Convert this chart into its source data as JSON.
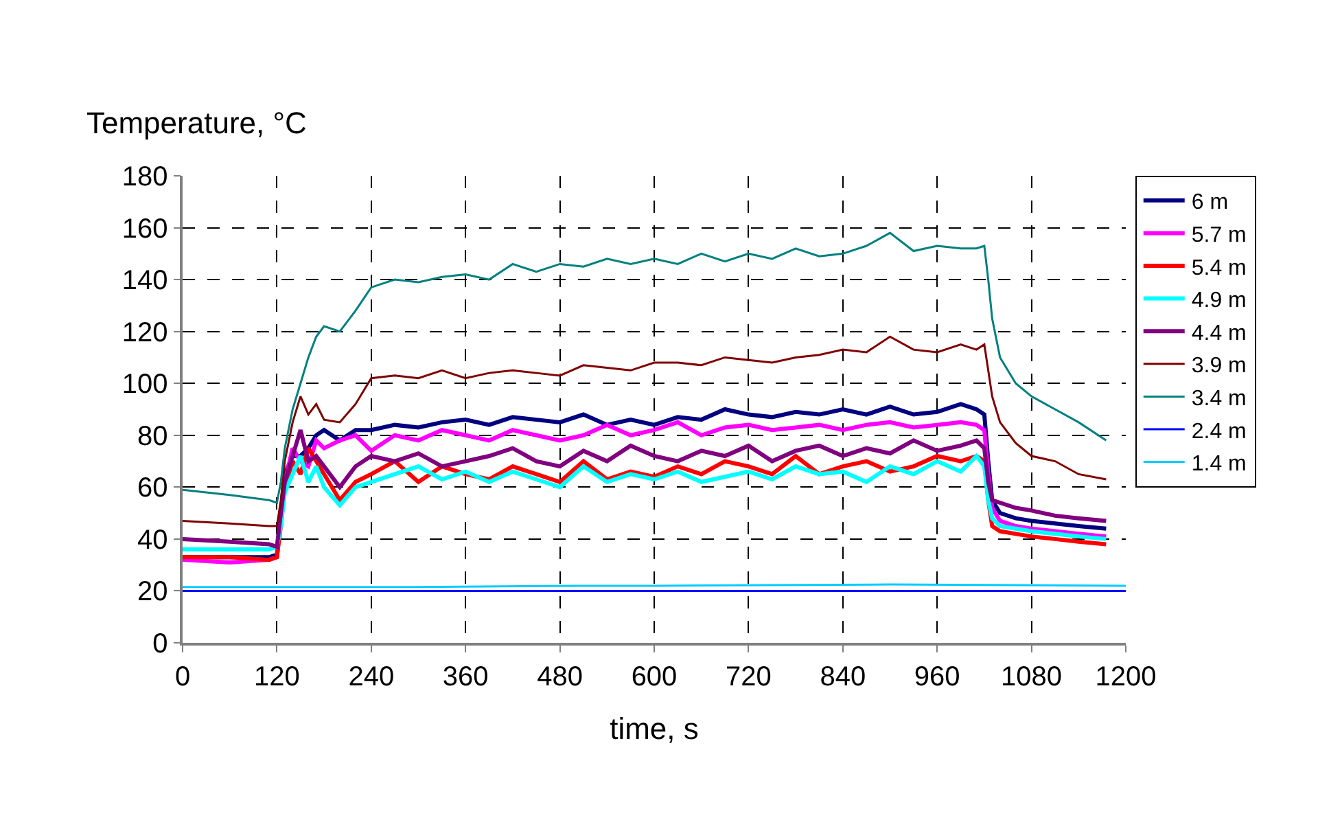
{
  "chart_data": {
    "type": "line",
    "ylabel": "Temperature, °C",
    "xlabel": "time, s",
    "x": [
      0,
      60,
      110,
      120,
      125,
      130,
      140,
      150,
      160,
      170,
      180,
      200,
      220,
      240,
      270,
      300,
      330,
      360,
      390,
      420,
      450,
      480,
      510,
      540,
      570,
      600,
      630,
      660,
      690,
      720,
      750,
      780,
      810,
      840,
      870,
      900,
      930,
      960,
      990,
      1010,
      1020,
      1025,
      1030,
      1040,
      1060,
      1080,
      1110,
      1140,
      1175
    ],
    "xlim": [
      0,
      1200
    ],
    "xticks": [
      0,
      120,
      240,
      360,
      480,
      600,
      720,
      840,
      960,
      1080,
      1200
    ],
    "ylim": [
      0,
      180
    ],
    "yticks": [
      0,
      20,
      40,
      60,
      80,
      100,
      120,
      140,
      160,
      180
    ],
    "grid": true,
    "legend": "right",
    "marker": "none",
    "line_style": "solid",
    "series": [
      {
        "name": "6 m",
        "color": "#000080",
        "values": [
          33,
          33,
          33,
          34,
          50,
          65,
          72,
          72,
          75,
          80,
          82,
          78,
          82,
          82,
          84,
          83,
          85,
          86,
          84,
          87,
          86,
          85,
          88,
          84,
          86,
          84,
          87,
          86,
          90,
          88,
          87,
          89,
          88,
          90,
          88,
          91,
          88,
          89,
          92,
          90,
          88,
          70,
          55,
          50,
          48,
          47,
          46,
          45,
          44
        ]
      },
      {
        "name": "5.7 m",
        "color": "#ff00ff",
        "values": [
          32,
          31,
          32,
          33,
          48,
          62,
          75,
          70,
          68,
          78,
          75,
          78,
          80,
          74,
          80,
          78,
          82,
          80,
          78,
          82,
          80,
          78,
          80,
          84,
          80,
          82,
          85,
          80,
          83,
          84,
          82,
          83,
          84,
          82,
          84,
          85,
          83,
          84,
          85,
          84,
          82,
          65,
          52,
          47,
          45,
          44,
          43,
          42,
          41
        ]
      },
      {
        "name": "5.4 m",
        "color": "#ff0000",
        "values": [
          33,
          33,
          32,
          33,
          45,
          60,
          70,
          65,
          75,
          70,
          65,
          55,
          62,
          65,
          70,
          62,
          68,
          65,
          63,
          68,
          65,
          62,
          70,
          63,
          66,
          64,
          68,
          65,
          70,
          68,
          65,
          72,
          65,
          68,
          70,
          66,
          68,
          72,
          70,
          72,
          70,
          55,
          45,
          43,
          42,
          41,
          40,
          39,
          38
        ]
      },
      {
        "name": "4.9 m",
        "color": "#00ffff",
        "values": [
          36,
          36,
          36,
          37,
          45,
          58,
          65,
          72,
          62,
          68,
          60,
          53,
          60,
          62,
          65,
          68,
          63,
          66,
          62,
          66,
          63,
          60,
          68,
          62,
          65,
          63,
          66,
          62,
          64,
          66,
          63,
          68,
          65,
          66,
          62,
          68,
          65,
          70,
          66,
          72,
          68,
          55,
          48,
          45,
          44,
          43,
          42,
          41,
          40
        ]
      },
      {
        "name": "4.4 m",
        "color": "#800080",
        "values": [
          40,
          39,
          38,
          37,
          50,
          62,
          72,
          82,
          70,
          72,
          68,
          60,
          68,
          72,
          70,
          73,
          68,
          70,
          72,
          75,
          70,
          68,
          74,
          70,
          76,
          72,
          70,
          74,
          72,
          76,
          70,
          74,
          76,
          72,
          75,
          73,
          78,
          74,
          76,
          78,
          75,
          62,
          55,
          54,
          52,
          51,
          49,
          48,
          47
        ]
      },
      {
        "name": "3.9 m",
        "color": "#800000",
        "values": [
          47,
          46,
          45,
          45,
          55,
          70,
          85,
          95,
          88,
          92,
          86,
          85,
          92,
          102,
          103,
          102,
          105,
          102,
          104,
          105,
          104,
          103,
          107,
          106,
          105,
          108,
          108,
          107,
          110,
          109,
          108,
          110,
          111,
          113,
          112,
          118,
          113,
          112,
          115,
          113,
          115,
          105,
          95,
          85,
          77,
          72,
          70,
          65,
          63
        ]
      },
      {
        "name": "3.4 m",
        "color": "#008080",
        "values": [
          59,
          57,
          55,
          54,
          62,
          75,
          90,
          100,
          110,
          118,
          122,
          120,
          128,
          137,
          140,
          139,
          141,
          142,
          140,
          146,
          143,
          146,
          145,
          148,
          146,
          148,
          146,
          150,
          147,
          150,
          148,
          152,
          149,
          150,
          153,
          158,
          151,
          153,
          152,
          152,
          153,
          140,
          125,
          110,
          100,
          95,
          90,
          85,
          78
        ]
      },
      {
        "name": "2.4 m",
        "color": "#0000ff",
        "x": [
          0,
          300,
          600,
          900,
          1200
        ],
        "values": [
          20,
          20,
          20,
          20,
          20
        ]
      },
      {
        "name": "1.4 m",
        "color": "#00ccff",
        "x": [
          0,
          300,
          500,
          600,
          900,
          1200
        ],
        "values": [
          21.5,
          21.5,
          22,
          22,
          22.5,
          22
        ]
      }
    ]
  }
}
